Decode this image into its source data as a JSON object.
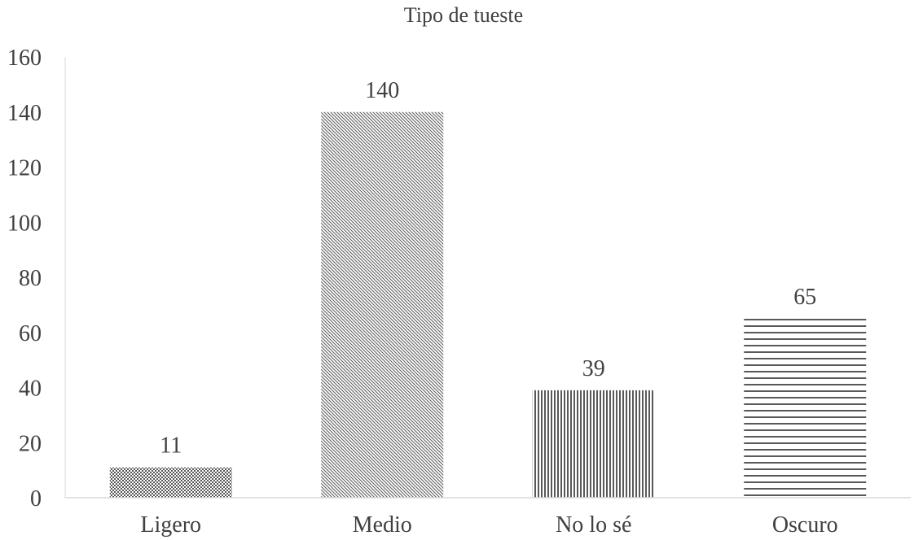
{
  "chart_data": {
    "type": "bar",
    "title": "Tipo de tueste",
    "categories": [
      "Ligero",
      "Medio",
      "No lo sé",
      "Oscuro"
    ],
    "values": [
      11,
      140,
      39,
      65
    ],
    "data_labels": [
      "11",
      "140",
      "39",
      "65"
    ],
    "patterns": [
      "dots",
      "diagonal",
      "vertical",
      "horizontal"
    ],
    "ylim": [
      0,
      160
    ],
    "yticks": [
      0,
      20,
      40,
      60,
      80,
      100,
      120,
      140,
      160
    ],
    "ytick_labels": [
      "0",
      "20",
      "40",
      "60",
      "80",
      "100",
      "120",
      "140",
      "160"
    ],
    "xlabel": "",
    "ylabel": "",
    "grid": false,
    "legend": "none",
    "colors": {
      "text": "#404040",
      "axis": "#d9d9d9",
      "bar_pattern": "#595959"
    }
  }
}
